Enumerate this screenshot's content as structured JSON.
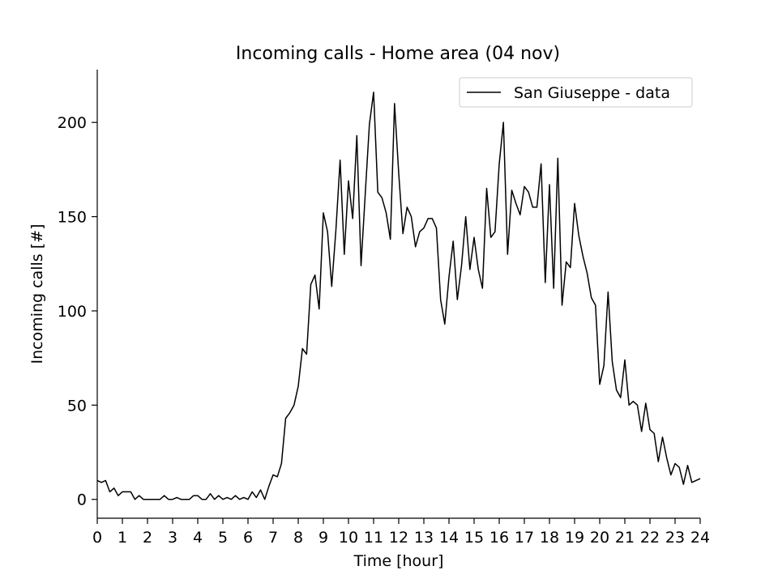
{
  "chart_data": {
    "type": "line",
    "title": "Incoming calls - Home area (04 nov)",
    "xlabel": "Time [hour]",
    "ylabel": "Incoming calls [#]",
    "xlim": [
      0,
      24
    ],
    "ylim": [
      -10,
      228
    ],
    "xticks": [
      0,
      1,
      2,
      3,
      4,
      5,
      6,
      7,
      8,
      9,
      10,
      11,
      12,
      13,
      14,
      15,
      16,
      17,
      18,
      19,
      20,
      21,
      22,
      23,
      24
    ],
    "yticks": [
      0,
      50,
      100,
      150,
      200
    ],
    "grid": false,
    "legend_position": "top-right",
    "series": [
      {
        "name": "San Giuseppe - data",
        "color": "#000000",
        "x": [
          0,
          0.167,
          0.333,
          0.5,
          0.667,
          0.833,
          1,
          1.167,
          1.333,
          1.5,
          1.667,
          1.833,
          2,
          2.167,
          2.333,
          2.5,
          2.667,
          2.833,
          3,
          3.167,
          3.333,
          3.5,
          3.667,
          3.833,
          4,
          4.167,
          4.333,
          4.5,
          4.667,
          4.833,
          5,
          5.167,
          5.333,
          5.5,
          5.667,
          5.833,
          6,
          6.167,
          6.333,
          6.5,
          6.667,
          6.833,
          7,
          7.167,
          7.333,
          7.5,
          7.667,
          7.833,
          8,
          8.167,
          8.333,
          8.5,
          8.667,
          8.833,
          9,
          9.167,
          9.333,
          9.5,
          9.667,
          9.833,
          10,
          10.167,
          10.333,
          10.5,
          10.667,
          10.833,
          11,
          11.167,
          11.333,
          11.5,
          11.667,
          11.833,
          12,
          12.167,
          12.333,
          12.5,
          12.667,
          12.833,
          13,
          13.167,
          13.333,
          13.5,
          13.667,
          13.833,
          14,
          14.167,
          14.333,
          14.5,
          14.667,
          14.833,
          15,
          15.167,
          15.333,
          15.5,
          15.667,
          15.833,
          16,
          16.167,
          16.333,
          16.5,
          16.667,
          16.833,
          17,
          17.167,
          17.333,
          17.5,
          17.667,
          17.833,
          18,
          18.167,
          18.333,
          18.5,
          18.667,
          18.833,
          19,
          19.167,
          19.333,
          19.5,
          19.667,
          19.833,
          20,
          20.167,
          20.333,
          20.5,
          20.667,
          20.833,
          21,
          21.167,
          21.333,
          21.5,
          21.667,
          21.833,
          22,
          22.167,
          22.333,
          22.5,
          22.667,
          22.833,
          23,
          23.167,
          23.333,
          23.5,
          23.667,
          23.833,
          24
        ],
        "y": [
          10,
          9,
          10,
          4,
          6,
          2,
          4,
          4,
          4,
          0,
          2,
          0,
          0,
          0,
          0,
          0,
          2,
          0,
          0,
          1,
          0,
          0,
          0,
          2,
          2,
          0,
          0,
          3,
          0,
          2,
          0,
          1,
          0,
          2,
          0,
          1,
          0,
          4,
          1,
          5,
          0,
          7,
          13,
          12,
          19,
          43,
          46,
          50,
          60,
          80,
          77,
          114,
          119,
          101,
          152,
          142,
          113,
          143,
          180,
          130,
          169,
          149,
          193,
          124,
          162,
          199,
          216,
          163,
          160,
          152,
          138,
          210,
          173,
          141,
          155,
          150,
          134,
          142,
          144,
          149,
          149,
          144,
          106,
          93,
          118,
          137,
          106,
          124,
          150,
          122,
          139,
          122,
          112,
          165,
          139,
          142,
          178,
          200,
          130,
          164,
          157,
          151,
          166,
          163,
          155,
          155,
          178,
          115,
          167,
          112,
          181,
          103,
          126,
          123,
          157,
          140,
          129,
          120,
          107,
          103,
          61,
          71,
          110,
          73,
          58,
          54,
          74,
          50,
          52,
          50,
          36,
          51,
          37,
          35,
          20,
          33,
          22,
          13,
          19,
          17,
          8,
          18,
          9,
          10,
          11
        ]
      }
    ]
  }
}
